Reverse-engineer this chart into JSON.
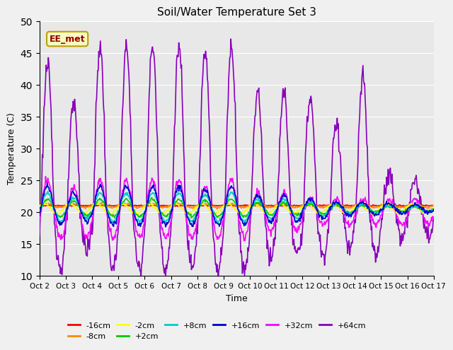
{
  "title": "Soil/Water Temperature Set 3",
  "xlabel": "Time",
  "ylabel": "Temperature (C)",
  "xlim": [
    0,
    15
  ],
  "ylim": [
    10,
    50
  ],
  "yticks": [
    10,
    15,
    20,
    25,
    30,
    35,
    40,
    45,
    50
  ],
  "xtick_labels": [
    "Oct 2",
    "Oct 3",
    "Oct 4",
    "Oct 5",
    "Oct 6",
    "Oct 7",
    "Oct 8",
    "Oct 9",
    "Oct 10",
    "Oct 11",
    "Oct 12",
    "Oct 13",
    "Oct 14",
    "Oct 15",
    "Oct 16",
    "Oct 17"
  ],
  "fig_bg": "#f0f0f0",
  "ax_bg": "#e8e8e8",
  "annotation_text": "EE_met",
  "annotation_bg": "#ffffc0",
  "annotation_border": "#b8a000",
  "annotation_text_color": "#880000",
  "series": [
    {
      "label": "-16cm",
      "color": "#ff0000",
      "lw": 1.2,
      "zorder": 5
    },
    {
      "label": "-8cm",
      "color": "#ff8800",
      "lw": 1.2,
      "zorder": 5
    },
    {
      "label": "-2cm",
      "color": "#ffff00",
      "lw": 1.2,
      "zorder": 5
    },
    {
      "label": "+2cm",
      "color": "#00cc00",
      "lw": 1.2,
      "zorder": 5
    },
    {
      "label": "+8cm",
      "color": "#00cccc",
      "lw": 1.2,
      "zorder": 5
    },
    {
      "label": "+16cm",
      "color": "#0000cc",
      "lw": 1.2,
      "zorder": 5
    },
    {
      "label": "+32cm",
      "color": "#ff00ff",
      "lw": 1.2,
      "zorder": 4
    },
    {
      "label": "+64cm",
      "color": "#8800bb",
      "lw": 1.2,
      "zorder": 3
    }
  ]
}
